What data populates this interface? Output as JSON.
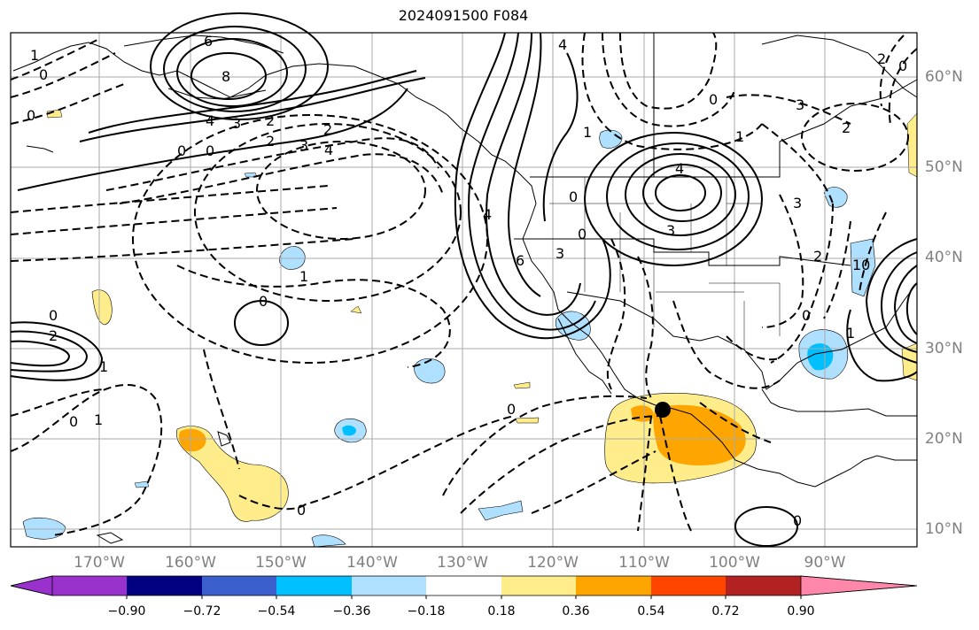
{
  "title": "2024091500 F084",
  "lat_labels": [
    "60°N",
    "50°N",
    "40°N",
    "30°N",
    "20°N",
    "10°N"
  ],
  "lon_labels": [
    "170°W",
    "160°W",
    "150°W",
    "140°W",
    "130°W",
    "120°W",
    "110°W",
    "100°W",
    "90°W"
  ],
  "colorbar": {
    "ticks": [
      "−0.90",
      "−0.72",
      "−0.54",
      "−0.36",
      "−0.18",
      "0.18",
      "0.36",
      "0.54",
      "0.72",
      "0.90"
    ],
    "colors": [
      "#9932cc",
      "#000080",
      "#3a5fcd",
      "#00bfff",
      "#afe0ff",
      "#ffffff",
      "#ffec8b",
      "#ffa500",
      "#ff4500",
      "#b22222",
      "#ff88aa"
    ]
  },
  "contour_labels": [
    "6",
    "8",
    "4",
    "3",
    "2",
    "0",
    "0",
    "0",
    "2",
    "3",
    "4",
    "2",
    "1",
    "3",
    "4",
    "4",
    "1",
    "0",
    "4",
    "3",
    "0",
    "2",
    "1",
    "0",
    "0",
    "1",
    "0",
    "3",
    "2",
    "3",
    "2",
    "10",
    "0",
    "1",
    "0",
    "0",
    "2",
    "1",
    "0",
    "1",
    "4",
    "3",
    "6",
    "3",
    "2",
    "0",
    "0",
    "0"
  ],
  "map_features": {
    "marker": "black-circle-marker",
    "coastline_color": "#000000",
    "grid_color": "#aaaaaa"
  }
}
